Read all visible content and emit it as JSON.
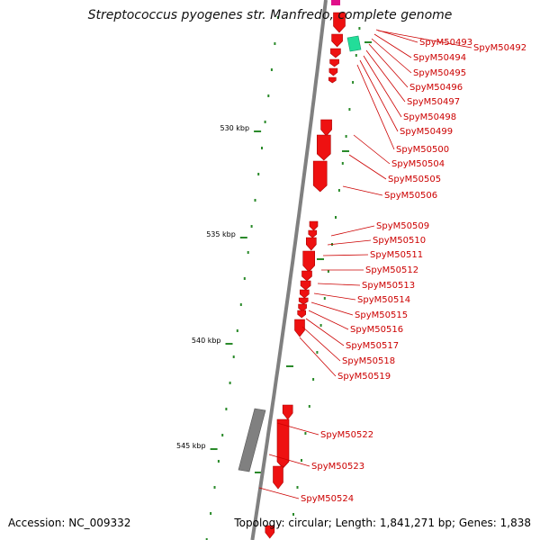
{
  "title": "Streptococcus pyogenes str. Manfredo, complete genome",
  "footer": {
    "accession": "Accession: NC_009332",
    "summary": "Topology: circular; Length: 1,841,271 bp; Genes: 1,838"
  },
  "colors": {
    "backbone": "#808080",
    "gene": "#ee1111",
    "gene_dark": "#aa0000",
    "label": "#cc0000",
    "tick": "#2a8a2a",
    "rrna": "#22dd99",
    "other": "#e0108a",
    "pseudo": "#808080"
  },
  "kbp_ticks": [
    "530 kbp",
    "535 kbp",
    "540 kbp",
    "545 kbp"
  ],
  "gene_labels": [
    "SpyM50492",
    "SpyM50493",
    "SpyM50494",
    "SpyM50495",
    "SpyM50496",
    "SpyM50497",
    "SpyM50498",
    "SpyM50499",
    "SpyM50500",
    "SpyM50504",
    "SpyM50505",
    "SpyM50506",
    "SpyM50509",
    "SpyM50510",
    "SpyM50511",
    "SpyM50512",
    "SpyM50513",
    "SpyM50514",
    "SpyM50515",
    "SpyM50516",
    "SpyM50517",
    "SpyM50518",
    "SpyM50519",
    "SpyM50522",
    "SpyM50523",
    "SpyM50524"
  ]
}
